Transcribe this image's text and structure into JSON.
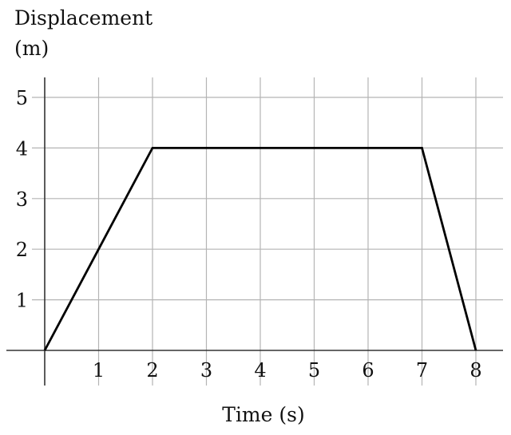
{
  "chart_data": {
    "type": "line",
    "title": "",
    "ylabel_lines": [
      "Displacement",
      "(m)"
    ],
    "xlabel": "Time (s)",
    "x": [
      0,
      2,
      7,
      8
    ],
    "y": [
      0,
      4,
      4,
      0
    ],
    "xlim": [
      0,
      8
    ],
    "ylim": [
      0,
      5
    ],
    "x_ticks": [
      1,
      2,
      3,
      4,
      5,
      6,
      7,
      8
    ],
    "y_ticks": [
      1,
      2,
      3,
      4,
      5
    ],
    "grid": true,
    "line_color": "#000000",
    "grid_color": "#b4b4b4"
  }
}
